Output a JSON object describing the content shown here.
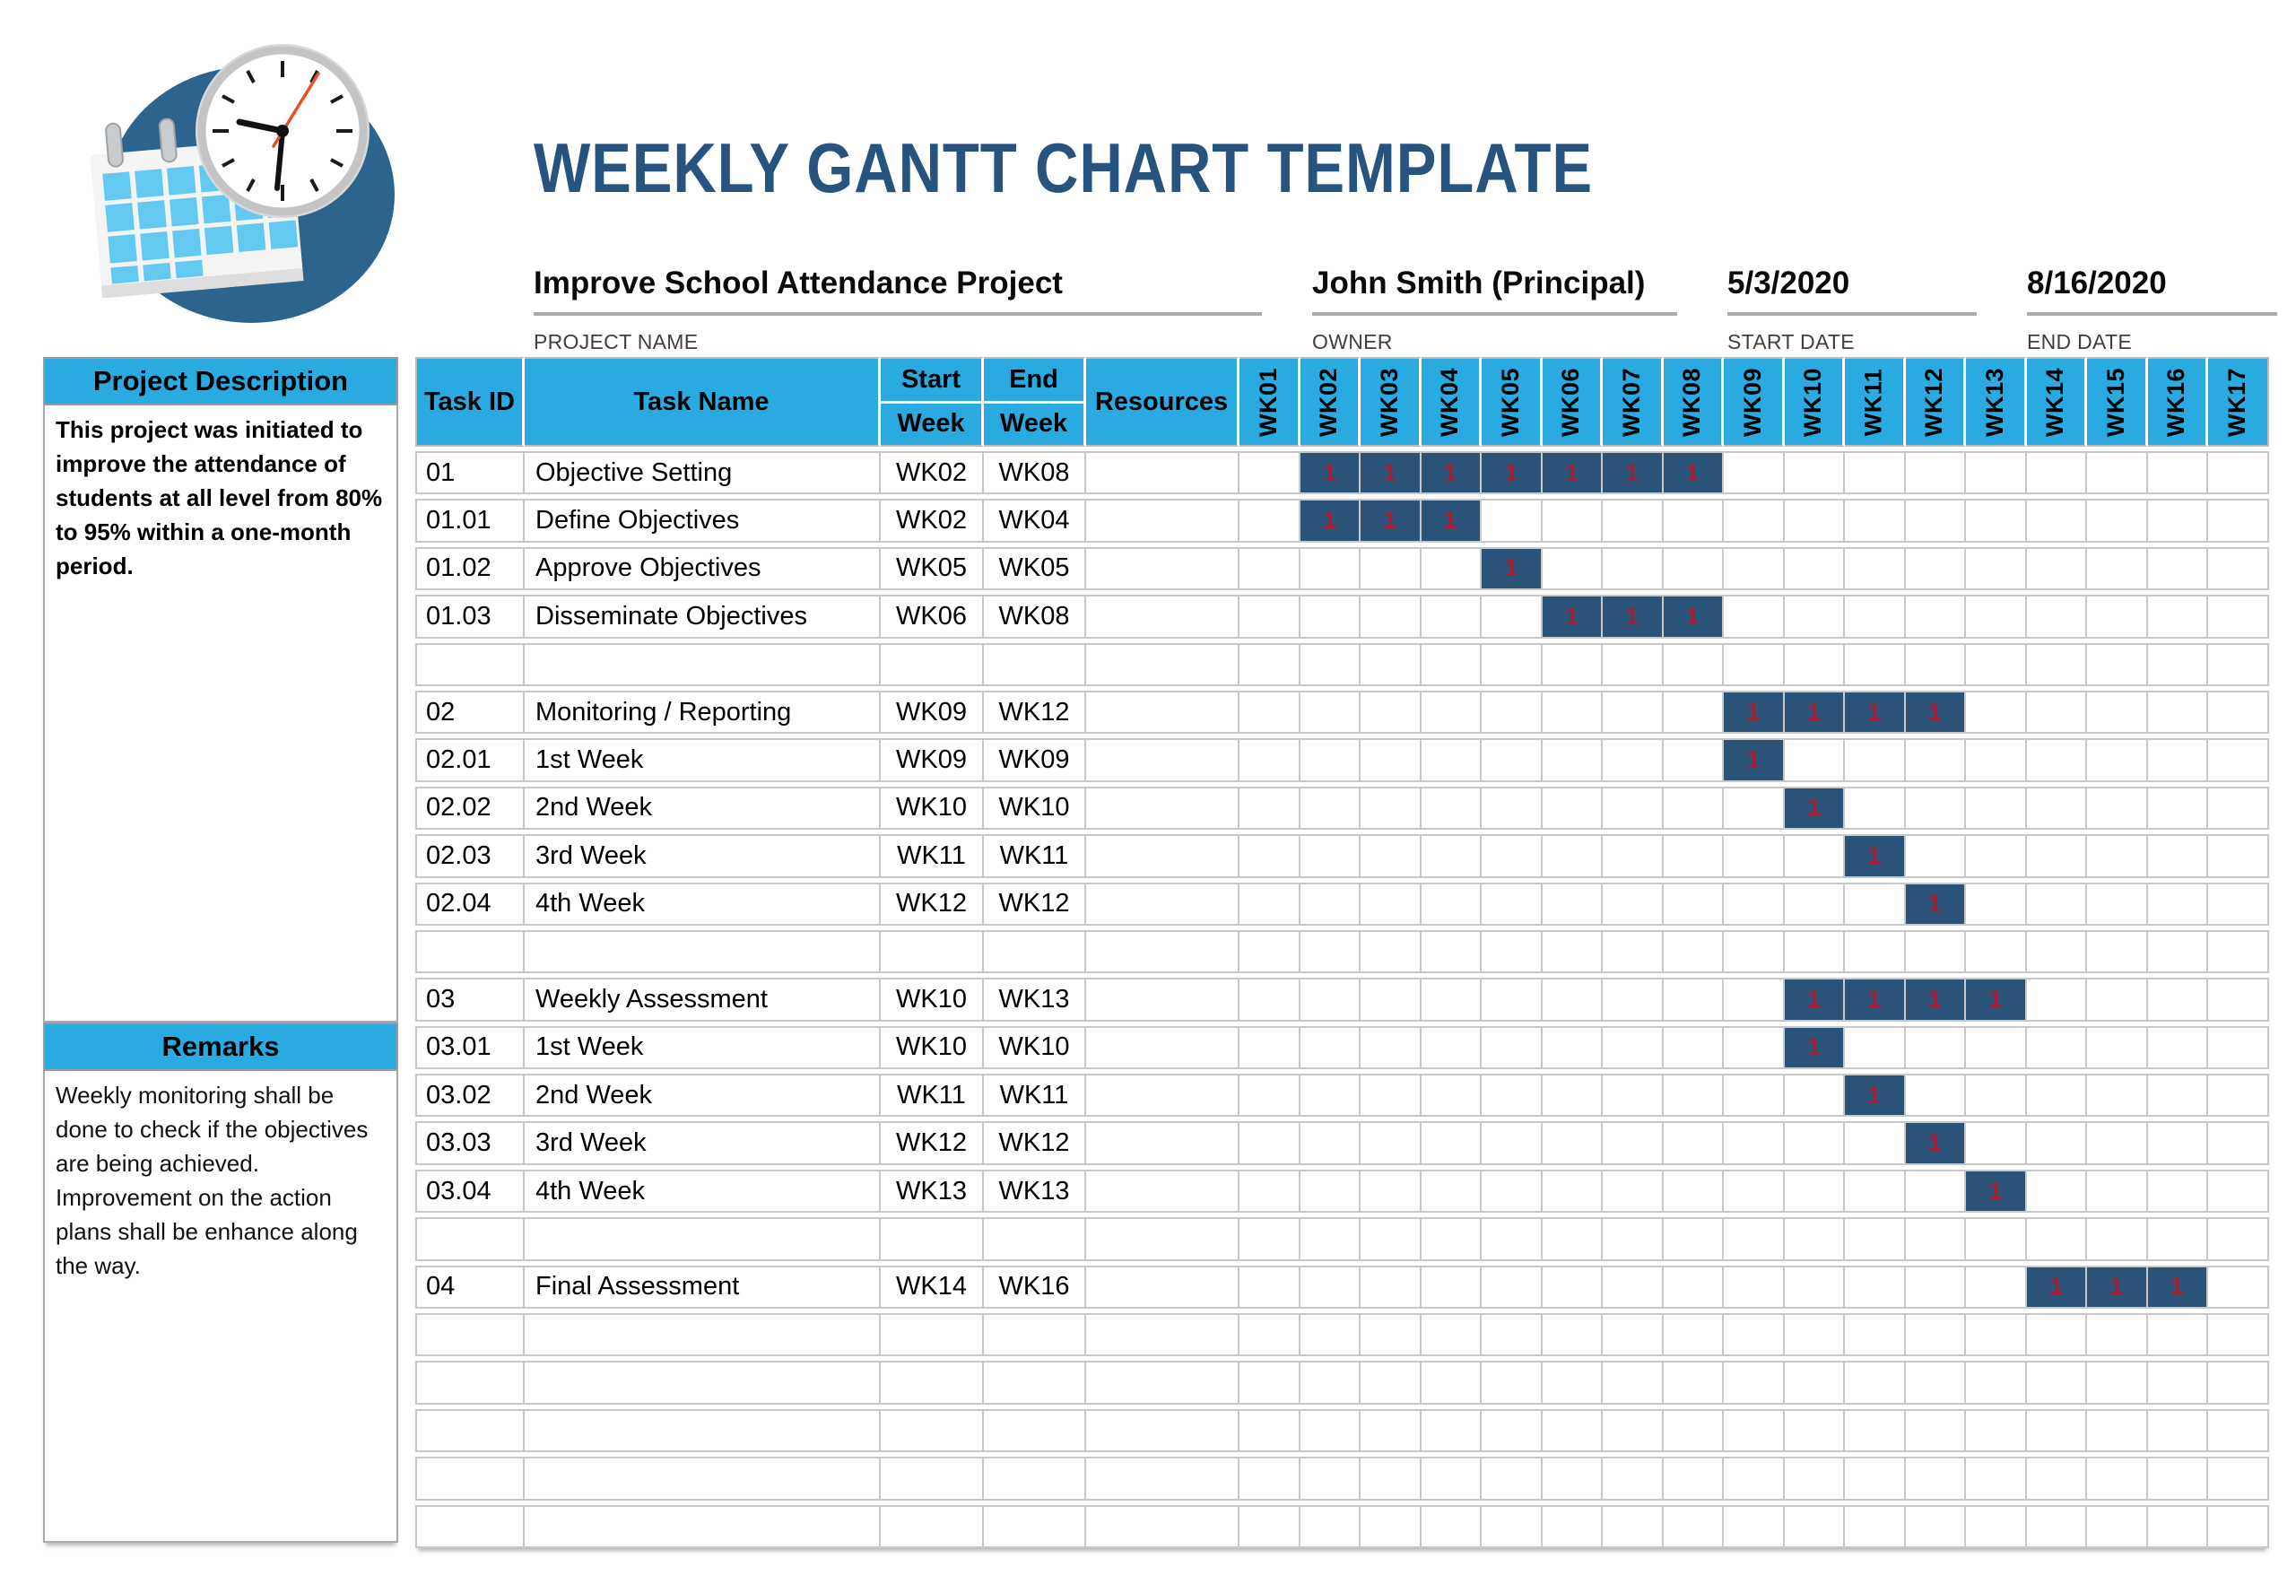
{
  "title": "WEEKLY GANTT CHART TEMPLATE",
  "project_info": {
    "name": "Improve School Attendance Project",
    "name_label": "PROJECT NAME",
    "owner": "John Smith (Principal)",
    "owner_label": "OWNER",
    "start_date": "5/3/2020",
    "start_label": "START DATE",
    "end_date": "8/16/2020",
    "end_label": "END DATE"
  },
  "sidebar": {
    "description_title": "Project Description",
    "description_text": "This project was initiated to improve the attendance of students at all level from 80% to 95% within a one-month period.",
    "remarks_title": "Remarks",
    "remarks_lines": [
      "Weekly monitoring shall be done to check if the objectives are being achieved.",
      "Improvement on the action plans shall be enhance along the way."
    ]
  },
  "table": {
    "headers": {
      "task_id": "Task ID",
      "task_name": "Task Name",
      "start_week": [
        "Start",
        "Week"
      ],
      "end_week": [
        "End",
        "Week"
      ],
      "resources": "Resources"
    },
    "weeks": [
      "WK01",
      "WK02",
      "WK03",
      "WK04",
      "WK05",
      "WK06",
      "WK07",
      "WK08",
      "WK09",
      "WK10",
      "WK11",
      "WK12",
      "WK13",
      "WK14",
      "WK15",
      "WK16",
      "WK17"
    ],
    "bar_value": "1",
    "rows": [
      {
        "id": "01",
        "name": "Objective Setting",
        "start": "WK02",
        "end": "WK08",
        "resources": "",
        "bar": [
          2,
          8
        ]
      },
      {
        "id": "01.01",
        "name": "Define Objectives",
        "start": "WK02",
        "end": "WK04",
        "resources": "",
        "bar": [
          2,
          4
        ]
      },
      {
        "id": "01.02",
        "name": "Approve Objectives",
        "start": "WK05",
        "end": "WK05",
        "resources": "",
        "bar": [
          5,
          5
        ]
      },
      {
        "id": "01.03",
        "name": "Disseminate Objectives",
        "start": "WK06",
        "end": "WK08",
        "resources": "",
        "bar": [
          6,
          8
        ]
      },
      {
        "id": "",
        "name": "",
        "start": "",
        "end": "",
        "resources": "",
        "bar": null
      },
      {
        "id": "02",
        "name": "Monitoring / Reporting",
        "start": "WK09",
        "end": "WK12",
        "resources": "",
        "bar": [
          9,
          12
        ]
      },
      {
        "id": "02.01",
        "name": "1st Week",
        "start": "WK09",
        "end": "WK09",
        "resources": "",
        "bar": [
          9,
          9
        ]
      },
      {
        "id": "02.02",
        "name": "2nd Week",
        "start": "WK10",
        "end": "WK10",
        "resources": "",
        "bar": [
          10,
          10
        ]
      },
      {
        "id": "02.03",
        "name": "3rd Week",
        "start": "WK11",
        "end": "WK11",
        "resources": "",
        "bar": [
          11,
          11
        ]
      },
      {
        "id": "02.04",
        "name": "4th Week",
        "start": "WK12",
        "end": "WK12",
        "resources": "",
        "bar": [
          12,
          12
        ]
      },
      {
        "id": "",
        "name": "",
        "start": "",
        "end": "",
        "resources": "",
        "bar": null
      },
      {
        "id": "03",
        "name": "Weekly Assessment",
        "start": "WK10",
        "end": "WK13",
        "resources": "",
        "bar": [
          10,
          13
        ]
      },
      {
        "id": "03.01",
        "name": "1st Week",
        "start": "WK10",
        "end": "WK10",
        "resources": "",
        "bar": [
          10,
          10
        ]
      },
      {
        "id": "03.02",
        "name": "2nd Week",
        "start": "WK11",
        "end": "WK11",
        "resources": "",
        "bar": [
          11,
          11
        ]
      },
      {
        "id": "03.03",
        "name": "3rd Week",
        "start": "WK12",
        "end": "WK12",
        "resources": "",
        "bar": [
          12,
          12
        ]
      },
      {
        "id": "03.04",
        "name": "4th Week",
        "start": "WK13",
        "end": "WK13",
        "resources": "",
        "bar": [
          13,
          13
        ]
      },
      {
        "id": "",
        "name": "",
        "start": "",
        "end": "",
        "resources": "",
        "bar": null
      },
      {
        "id": "04",
        "name": "Final Assessment",
        "start": "WK14",
        "end": "WK16",
        "resources": "",
        "bar": [
          14,
          16
        ]
      },
      {
        "id": "",
        "name": "",
        "start": "",
        "end": "",
        "resources": "",
        "bar": null
      },
      {
        "id": "",
        "name": "",
        "start": "",
        "end": "",
        "resources": "",
        "bar": null
      },
      {
        "id": "",
        "name": "",
        "start": "",
        "end": "",
        "resources": "",
        "bar": null
      },
      {
        "id": "",
        "name": "",
        "start": "",
        "end": "",
        "resources": "",
        "bar": null
      },
      {
        "id": "",
        "name": "",
        "start": "",
        "end": "",
        "resources": "",
        "bar": null
      }
    ]
  },
  "chart_data": {
    "type": "bar",
    "subtype": "gantt",
    "title": "WEEKLY GANTT CHART TEMPLATE",
    "x_categories": [
      "WK01",
      "WK02",
      "WK03",
      "WK04",
      "WK05",
      "WK06",
      "WK07",
      "WK08",
      "WK09",
      "WK10",
      "WK11",
      "WK12",
      "WK13",
      "WK14",
      "WK15",
      "WK16",
      "WK17"
    ],
    "cell_marker": "1",
    "tasks": [
      {
        "id": "01",
        "name": "Objective Setting",
        "start": "WK02",
        "end": "WK08"
      },
      {
        "id": "01.01",
        "name": "Define Objectives",
        "start": "WK02",
        "end": "WK04"
      },
      {
        "id": "01.02",
        "name": "Approve Objectives",
        "start": "WK05",
        "end": "WK05"
      },
      {
        "id": "01.03",
        "name": "Disseminate Objectives",
        "start": "WK06",
        "end": "WK08"
      },
      {
        "id": "02",
        "name": "Monitoring / Reporting",
        "start": "WK09",
        "end": "WK12"
      },
      {
        "id": "02.01",
        "name": "1st Week",
        "start": "WK09",
        "end": "WK09"
      },
      {
        "id": "02.02",
        "name": "2nd Week",
        "start": "WK10",
        "end": "WK10"
      },
      {
        "id": "02.03",
        "name": "3rd Week",
        "start": "WK11",
        "end": "WK11"
      },
      {
        "id": "02.04",
        "name": "4th Week",
        "start": "WK12",
        "end": "WK12"
      },
      {
        "id": "03",
        "name": "Weekly Assessment",
        "start": "WK10",
        "end": "WK13"
      },
      {
        "id": "03.01",
        "name": "1st Week",
        "start": "WK10",
        "end": "WK10"
      },
      {
        "id": "03.02",
        "name": "2nd Week",
        "start": "WK11",
        "end": "WK11"
      },
      {
        "id": "03.03",
        "name": "3rd Week",
        "start": "WK12",
        "end": "WK12"
      },
      {
        "id": "03.04",
        "name": "4th Week",
        "start": "WK13",
        "end": "WK13"
      },
      {
        "id": "04",
        "name": "Final Assessment",
        "start": "WK14",
        "end": "WK16"
      }
    ]
  },
  "colors": {
    "accent": "#29ABE2",
    "bar-fill": "#2B5277",
    "bar-red": "#A61C30",
    "title-color": "#27537F",
    "grid-line": "#C8C8C8",
    "underline": "#ABABAB",
    "logo-circle": "#2C648E",
    "logo-square": "#63C9F1"
  }
}
